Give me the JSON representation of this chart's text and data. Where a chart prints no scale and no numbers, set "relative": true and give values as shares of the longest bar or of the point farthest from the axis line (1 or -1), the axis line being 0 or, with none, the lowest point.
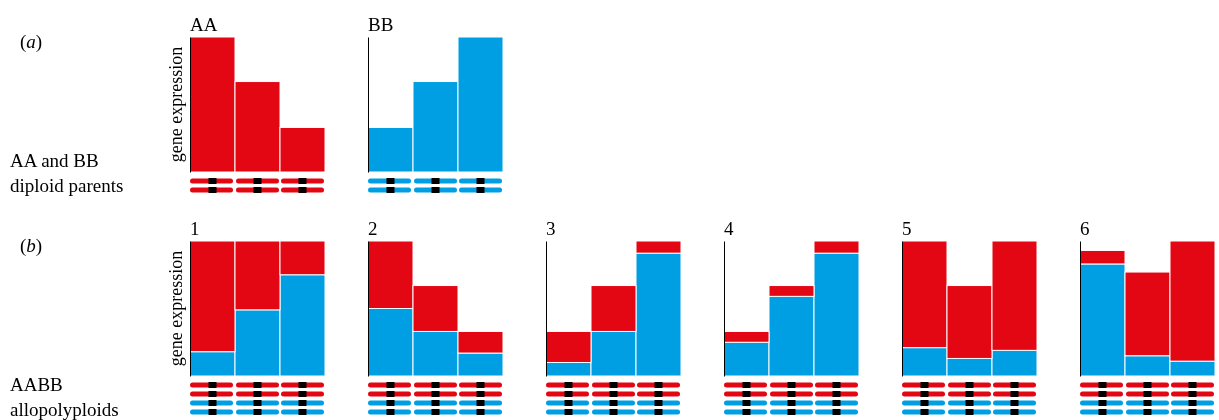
{
  "chart_data": [
    {
      "type": "bar",
      "title": "AA",
      "ylabel": "gene expression",
      "categories": [
        null,
        null,
        null
      ],
      "relative": true,
      "tick_labels": false,
      "annotations": [
        "(a)",
        "AA and BB diploid parents"
      ],
      "series": [
        {
          "color": "#e30613",
          "values": [
            1.0,
            0.67,
            0.33
          ]
        }
      ]
    },
    {
      "type": "bar",
      "title": "BB",
      "categories": [
        null,
        null,
        null
      ],
      "relative": true,
      "tick_labels": false,
      "series": [
        {
          "color": "#009fe3",
          "values": [
            0.33,
            0.67,
            1.0
          ]
        }
      ]
    },
    {
      "type": "bar",
      "title": "1",
      "ylabel": "gene expression",
      "categories": [
        null,
        null,
        null
      ],
      "relative": true,
      "stacked": true,
      "tick_labels": false,
      "annotations": [
        "(b)",
        "AABB allopolyploids"
      ],
      "series": [
        {
          "color": "#009fe3",
          "values": [
            0.18,
            0.49,
            0.75
          ]
        },
        {
          "color": "#e30613",
          "values": [
            0.82,
            0.51,
            0.25
          ]
        }
      ]
    },
    {
      "type": "bar",
      "title": "2",
      "categories": [
        null,
        null,
        null
      ],
      "relative": true,
      "stacked": true,
      "tick_labels": false,
      "series": [
        {
          "color": "#009fe3",
          "values": [
            0.5,
            0.33,
            0.17
          ]
        },
        {
          "color": "#e30613",
          "values": [
            0.5,
            0.34,
            0.16
          ]
        }
      ]
    },
    {
      "type": "bar",
      "title": "3",
      "categories": [
        null,
        null,
        null
      ],
      "relative": true,
      "stacked": true,
      "tick_labels": false,
      "series": [
        {
          "color": "#009fe3",
          "values": [
            0.1,
            0.33,
            0.91
          ]
        },
        {
          "color": "#e30613",
          "values": [
            0.23,
            0.34,
            0.09
          ]
        }
      ]
    },
    {
      "type": "bar",
      "title": "4",
      "categories": [
        null,
        null,
        null
      ],
      "relative": true,
      "stacked": true,
      "tick_labels": false,
      "series": [
        {
          "color": "#009fe3",
          "values": [
            0.25,
            0.59,
            0.91
          ]
        },
        {
          "color": "#e30613",
          "values": [
            0.08,
            0.08,
            0.09
          ]
        }
      ]
    },
    {
      "type": "bar",
      "title": "5",
      "categories": [
        null,
        null,
        null
      ],
      "relative": true,
      "stacked": true,
      "tick_labels": false,
      "series": [
        {
          "color": "#009fe3",
          "values": [
            0.21,
            0.13,
            0.19
          ]
        },
        {
          "color": "#e30613",
          "values": [
            0.79,
            0.54,
            0.81
          ]
        }
      ]
    },
    {
      "type": "bar",
      "title": "6",
      "categories": [
        null,
        null,
        null
      ],
      "relative": true,
      "stacked": true,
      "tick_labels": false,
      "series": [
        {
          "color": "#009fe3",
          "values": [
            0.83,
            0.15,
            0.11
          ]
        },
        {
          "color": "#e30613",
          "values": [
            0.1,
            0.62,
            0.89
          ]
        }
      ]
    }
  ]
}
